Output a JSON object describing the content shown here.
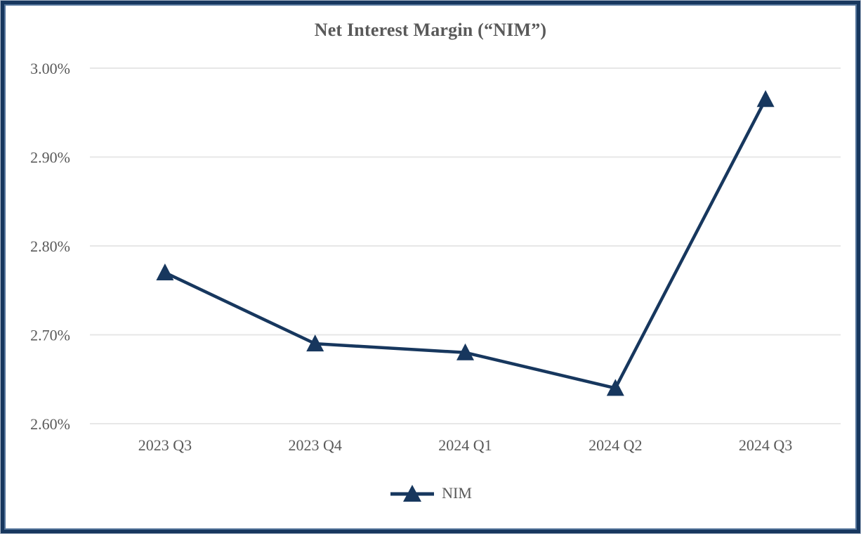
{
  "chart": {
    "title": "Net Interest Margin (“NIM”)",
    "legend_label": "NIM"
  },
  "chart_data": {
    "type": "line",
    "title": "Net Interest Margin (“NIM”)",
    "categories": [
      "2023 Q3",
      "2023 Q4",
      "2024 Q1",
      "2024 Q2",
      "2024 Q3"
    ],
    "series": [
      {
        "name": "NIM",
        "values": [
          2.77,
          2.69,
          2.68,
          2.64,
          2.965
        ]
      }
    ],
    "xlabel": "",
    "ylabel": "",
    "ylim": [
      2.6,
      3.0
    ],
    "ytick_labels": [
      "3.00%",
      "2.90%",
      "2.80%",
      "2.70%",
      "2.60%"
    ],
    "grid": true,
    "legend_position": "bottom",
    "marker": "triangle",
    "colors": {
      "line": "#17375e",
      "marker": "#17375e",
      "grid": "#e7e7e7",
      "text": "#595959",
      "title": "#595959",
      "frame_outer": "#a7b4c6",
      "frame_main": "#17375e",
      "frame_inner": "#54749a"
    }
  }
}
